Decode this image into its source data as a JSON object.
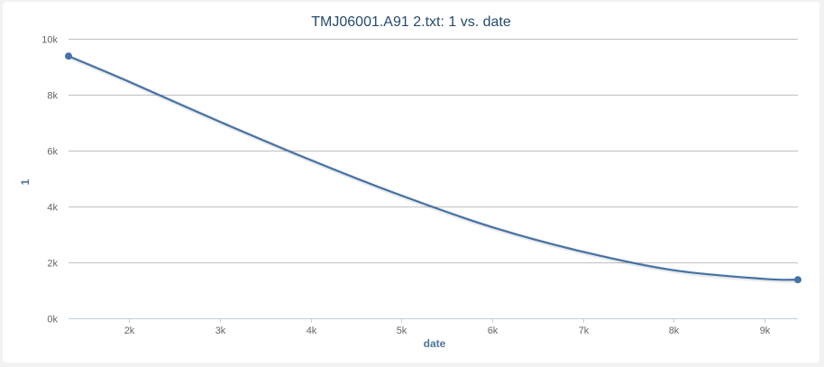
{
  "chart_data": {
    "type": "line",
    "title": "TMJ06001.A91 2.txt: 1 vs. date",
    "xlabel": "date",
    "ylabel": "1",
    "xlim": [
      1330,
      9370
    ],
    "ylim": [
      0,
      10000
    ],
    "x_ticks": [
      2000,
      3000,
      4000,
      5000,
      6000,
      7000,
      8000,
      9000
    ],
    "x_tick_labels": [
      "2k",
      "3k",
      "4k",
      "5k",
      "6k",
      "7k",
      "8k",
      "9k"
    ],
    "y_ticks": [
      0,
      2000,
      4000,
      6000,
      8000,
      10000
    ],
    "y_tick_labels": [
      "0k",
      "2k",
      "4k",
      "6k",
      "8k",
      "10k"
    ],
    "grid": {
      "horizontal": true,
      "vertical": false
    },
    "legend": "none",
    "series": [
      {
        "color": "#4572a7",
        "x": [
          1330,
          2000,
          3000,
          4000,
          5000,
          6000,
          7000,
          8000,
          9000,
          9370
        ],
        "y": [
          9380,
          8460,
          7030,
          5660,
          4390,
          3260,
          2380,
          1720,
          1410,
          1380
        ]
      }
    ]
  }
}
